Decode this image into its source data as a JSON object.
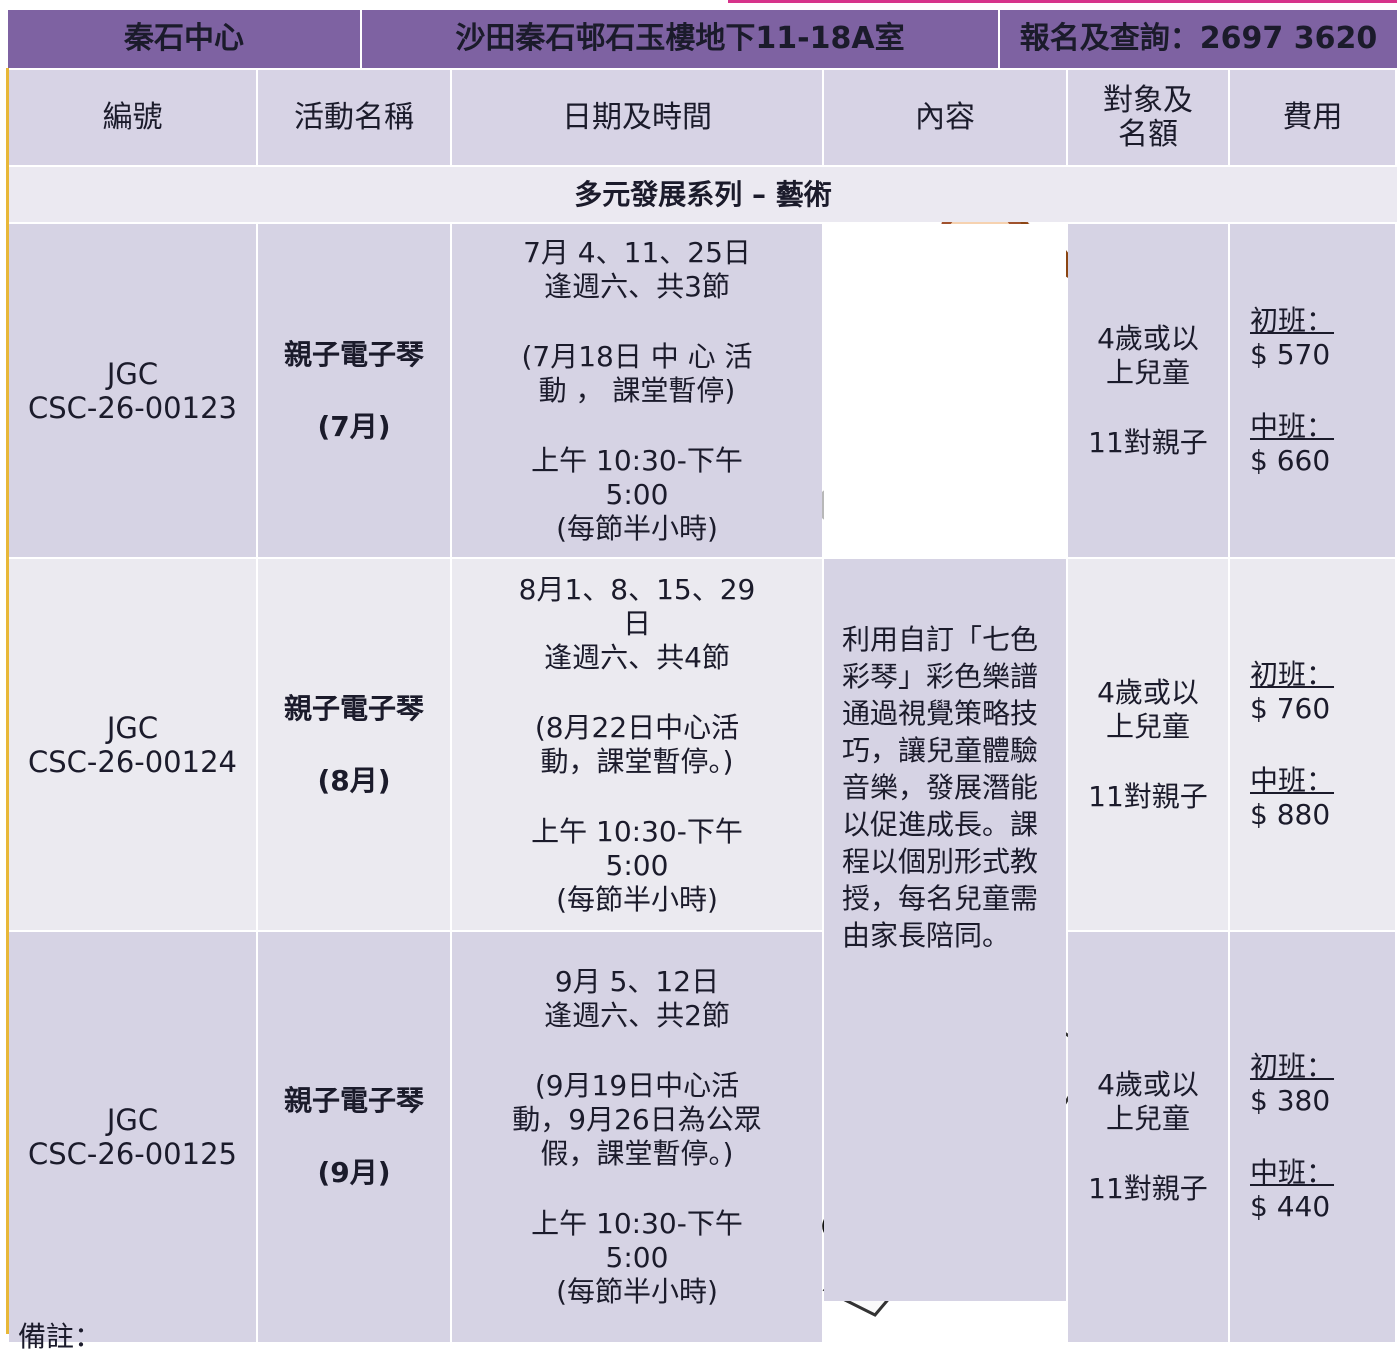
{
  "header": {
    "cells": [
      "秦石中心",
      "沙田秦石邨石玉樓地下11-18A室",
      "報名及查詢：2697 3620"
    ]
  },
  "table": {
    "columns": [
      "編號",
      "活動名稱",
      "日期及時間",
      "內容",
      "對象及名額",
      "費用"
    ],
    "section": "多元發展系列 – 藝術",
    "content": "利用自訂「七色彩琴」彩色樂譜通過視覺策略技巧，讓兒童體驗音樂，發展潛能以促進成長。課程以個別形式教授，每名兒童需由家長陪同。",
    "rows": [
      {
        "code": [
          "JGC",
          "CSC-26-00123"
        ],
        "name": [
          "親子電子琴",
          "(7月)"
        ],
        "dates": [
          "7月 4、11、25日",
          "逢週六、共3節",
          "(7月18日 中 心 活動 ， 課堂暫停)",
          "上午 10:30-下午 5:00",
          "(每節半小時)"
        ],
        "target": [
          "4歲或以上兒童",
          "11對親子"
        ],
        "fees": [
          {
            "label": "初班：",
            "price": "$ 570"
          },
          {
            "label": "中班：",
            "price": "$ 660"
          }
        ]
      },
      {
        "code": [
          "JGC",
          "CSC-26-00124"
        ],
        "name": [
          "親子電子琴",
          "(8月)"
        ],
        "dates": [
          "8月1、8、15、29日",
          "逢週六、共4節",
          "(8月22日中心活動，課堂暫停。)",
          "上午 10:30-下午 5:00",
          "(每節半小時)"
        ],
        "target": [
          "4歲或以上兒童",
          "11對親子"
        ],
        "fees": [
          {
            "label": "初班：",
            "price": "$ 760"
          },
          {
            "label": "中班：",
            "price": "$ 880"
          }
        ]
      },
      {
        "code": [
          "JGC",
          "CSC-26-00125"
        ],
        "name": [
          "親子電子琴",
          "(9月)"
        ],
        "dates": [
          "9月 5、12日",
          "逢週六、共2節",
          "(9月19日中心活動，9月26日為公眾假，課堂暫停。)",
          "上午 10:30-下午 5:00",
          "(每節半小時)"
        ],
        "target": [
          "4歲或以上兒童",
          "11對親子"
        ],
        "fees": [
          {
            "label": "初班：",
            "price": "$ 380"
          },
          {
            "label": "中班：",
            "price": "$ 440"
          }
        ]
      }
    ]
  },
  "note": "備註："
}
